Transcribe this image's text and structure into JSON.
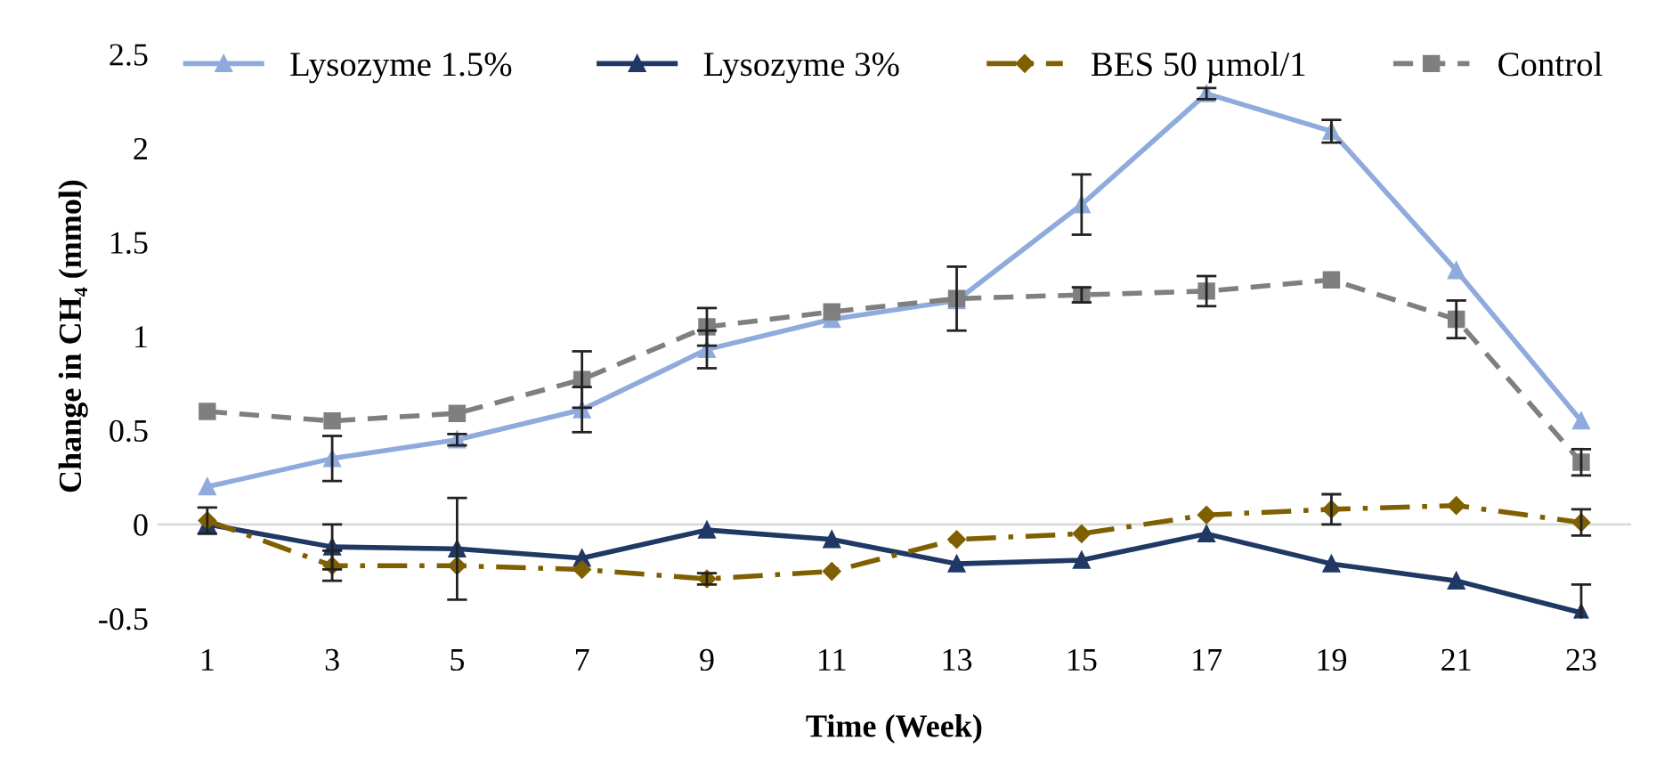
{
  "chart_data": {
    "type": "line",
    "xlabel": "Time (Week)",
    "ylabel": "Change in CH₄ (mmol)",
    "categories": [
      "1",
      "3",
      "5",
      "7",
      "9",
      "11",
      "13",
      "15",
      "17",
      "19",
      "21",
      "23"
    ],
    "ylim": [
      -0.5,
      2.5
    ],
    "yticks": [
      -0.5,
      0,
      0.5,
      1,
      1.5,
      2,
      2.5
    ],
    "grid": false,
    "legend": "top",
    "ref_lines": [
      {
        "axis": "y",
        "value": 0,
        "color": "#d9d9d9"
      }
    ],
    "series": [
      {
        "name": "Lysozyme 1.5%",
        "color": "#8faadc",
        "marker": "triangle",
        "line_style": "solid",
        "values": [
          0.2,
          0.35,
          0.45,
          0.61,
          0.93,
          1.09,
          1.19,
          1.7,
          2.29,
          2.09,
          1.35,
          0.55
        ],
        "errors": [
          null,
          0.12,
          0.03,
          0.12,
          0.1,
          null,
          null,
          0.16,
          0.03,
          0.06,
          null,
          null
        ]
      },
      {
        "name": "Lysozyme 3%",
        "color": "#203864",
        "marker": "triangle",
        "line_style": "solid",
        "values": [
          0,
          -0.12,
          -0.13,
          -0.18,
          -0.03,
          -0.08,
          -0.21,
          -0.19,
          -0.05,
          -0.21,
          -0.3,
          -0.47
        ],
        "errors": [
          null,
          0.12,
          0.27,
          null,
          null,
          null,
          null,
          null,
          null,
          null,
          null,
          0.15
        ]
      },
      {
        "name": "BES 50 µmol/1",
        "color": "#7f6000",
        "marker": "diamond",
        "line_style": "dashdot",
        "values": [
          0.02,
          -0.22,
          -0.22,
          -0.24,
          -0.29,
          -0.25,
          -0.08,
          -0.05,
          0.05,
          0.08,
          0.1,
          0.01
        ],
        "errors": [
          0.07,
          0.08,
          null,
          null,
          0.03,
          null,
          null,
          null,
          null,
          0.08,
          null,
          0.07
        ]
      },
      {
        "name": "Control",
        "color": "#7f7f7f",
        "marker": "square",
        "line_style": "dashed",
        "values": [
          0.6,
          0.55,
          0.59,
          0.77,
          1.05,
          1.13,
          1.2,
          1.22,
          1.24,
          1.3,
          1.09,
          0.33
        ],
        "errors": [
          null,
          null,
          null,
          0.15,
          0.1,
          null,
          0.17,
          0.04,
          0.08,
          null,
          0.1,
          0.07
        ]
      }
    ]
  }
}
